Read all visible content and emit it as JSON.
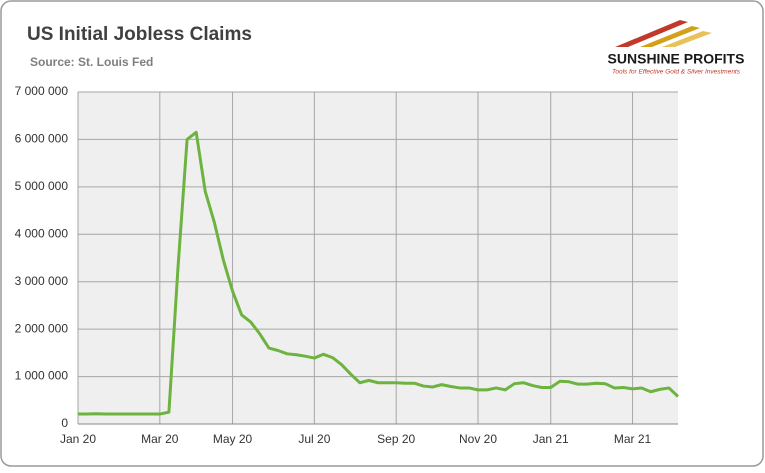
{
  "chart_data": {
    "type": "line",
    "title": "US Initial Jobless Claims",
    "subtitle": "Source: St. Louis Fed",
    "categories": [
      "Jan 20",
      null,
      null,
      null,
      null,
      null,
      null,
      null,
      null,
      "Mar 20",
      null,
      null,
      null,
      null,
      null,
      null,
      null,
      "May 20",
      null,
      null,
      null,
      null,
      null,
      null,
      null,
      null,
      "Jul 20",
      null,
      null,
      null,
      null,
      null,
      null,
      null,
      null,
      "Sep 20",
      null,
      null,
      null,
      null,
      null,
      null,
      null,
      null,
      "Nov 20",
      null,
      null,
      null,
      null,
      null,
      null,
      null,
      "Jan 21",
      null,
      null,
      null,
      null,
      null,
      null,
      null,
      null,
      "Mar 21",
      null,
      null,
      null,
      null,
      null
    ],
    "values": [
      210000,
      210000,
      215000,
      210000,
      210000,
      210000,
      210000,
      210000,
      210000,
      210000,
      250000,
      3300000,
      6000000,
      6150000,
      4900000,
      4250000,
      3450000,
      2800000,
      2300000,
      2150000,
      1900000,
      1600000,
      1550000,
      1480000,
      1460000,
      1430000,
      1390000,
      1470000,
      1400000,
      1250000,
      1050000,
      870000,
      920000,
      870000,
      870000,
      870000,
      860000,
      860000,
      800000,
      780000,
      830000,
      790000,
      760000,
      760000,
      720000,
      720000,
      760000,
      720000,
      850000,
      870000,
      810000,
      770000,
      770000,
      900000,
      890000,
      840000,
      840000,
      860000,
      850000,
      760000,
      770000,
      740000,
      760000,
      680000,
      730000,
      760000,
      580000
    ],
    "color": "#6db33f",
    "ylim": [
      0,
      7000000
    ],
    "yticks": [
      0,
      {
        "value": 1000000,
        "label": "1 000 000"
      },
      {
        "value": 2000000,
        "label": "2 000 000"
      },
      {
        "value": 3000000,
        "label": "3 000 000"
      },
      {
        "value": 4000000,
        "label": "4 000 000"
      },
      {
        "value": 5000000,
        "label": "5 000 000"
      },
      {
        "value": 6000000,
        "label": "6 000 000"
      },
      {
        "value": 7000000,
        "label": "7 000 000"
      }
    ],
    "grid": true
  },
  "logo": {
    "name": "SUNSHINE PROFITS",
    "tagline": "Tools for Effective Gold & Silver Investments"
  }
}
